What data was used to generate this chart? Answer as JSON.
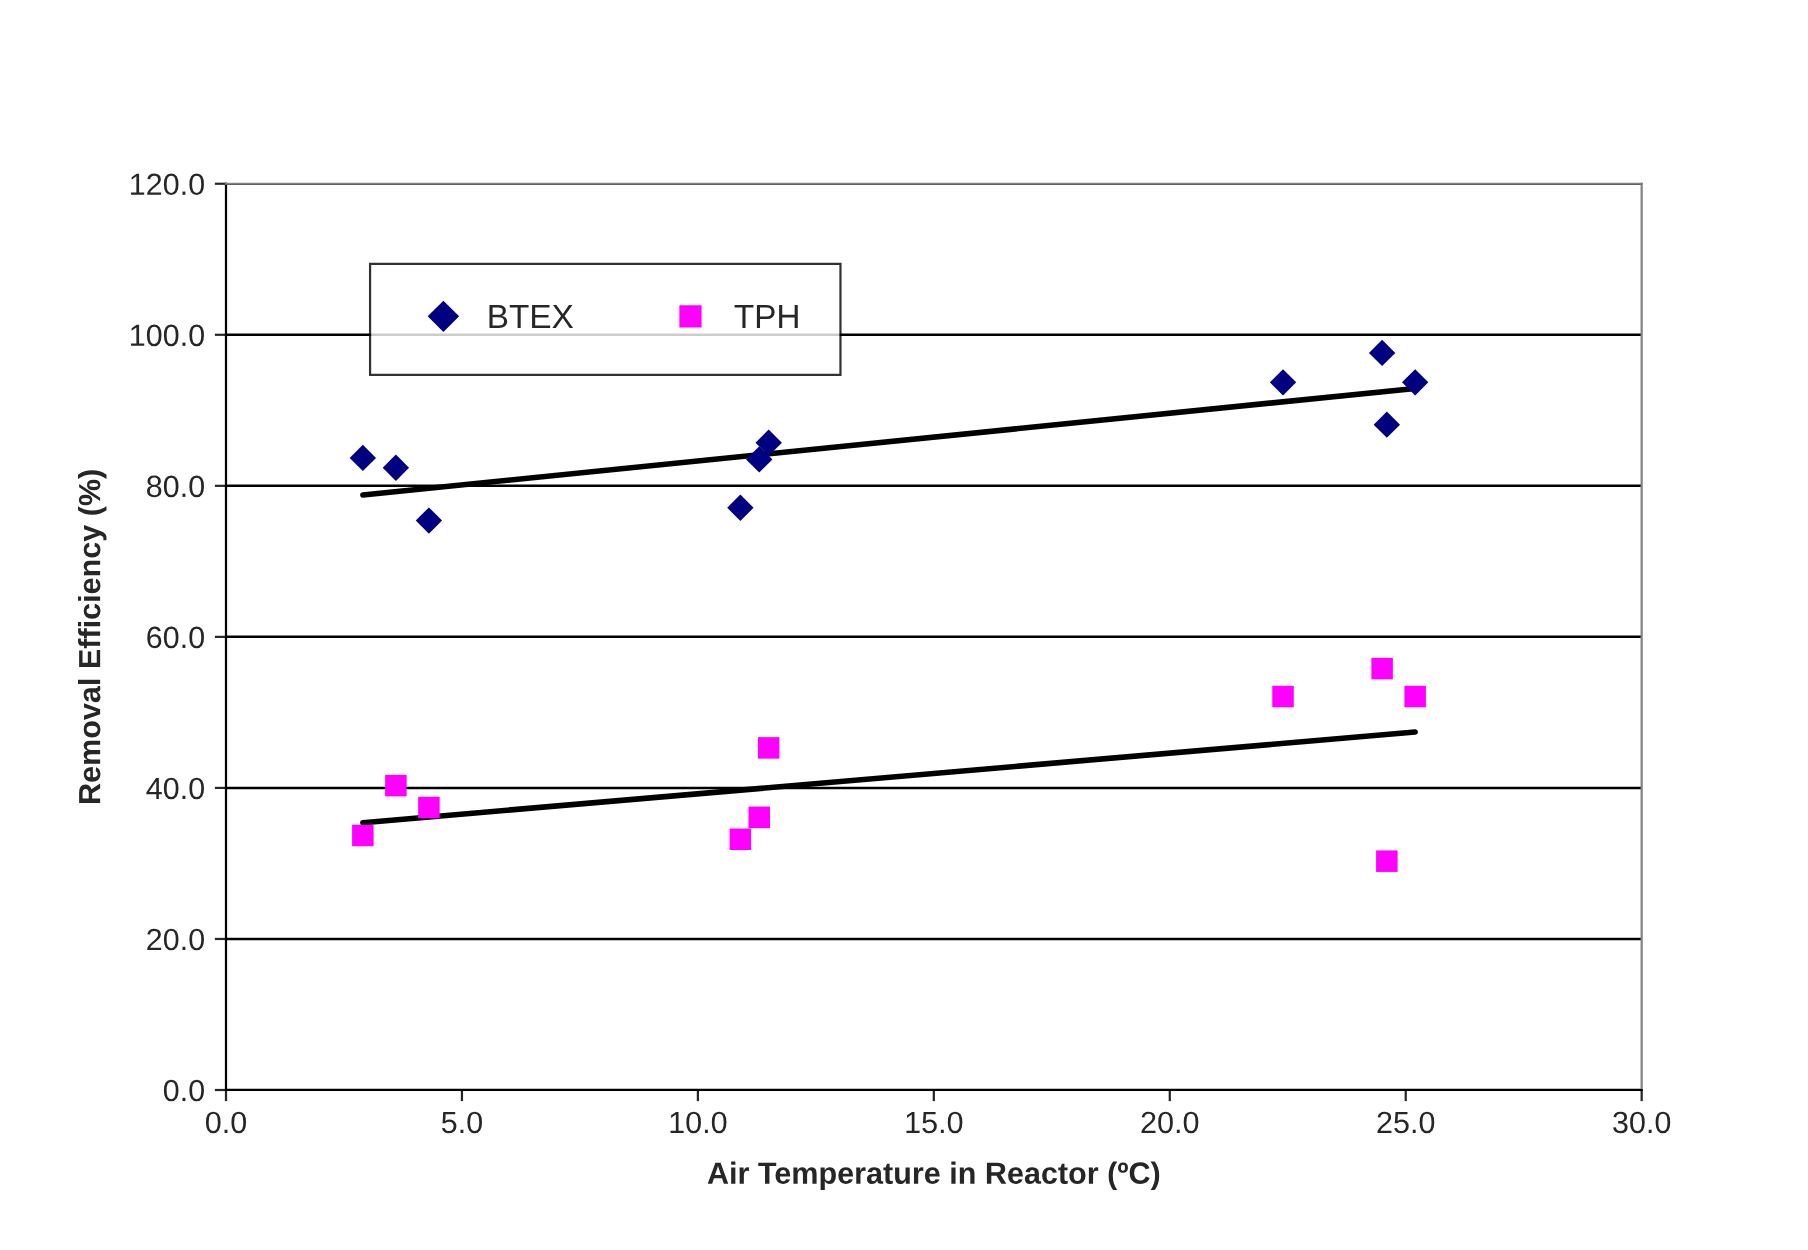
{
  "chart_data": {
    "type": "scatter",
    "xlabel": "Air Temperature in Reactor (ºC)",
    "ylabel": "Removal Efficiency (%)",
    "xlim": [
      0,
      30
    ],
    "xticks": [
      {
        "value": 0,
        "label": "0.0"
      },
      {
        "value": 5,
        "label": "5.0"
      },
      {
        "value": 10,
        "label": "10.0"
      },
      {
        "value": 15,
        "label": "15.0"
      },
      {
        "value": 20,
        "label": "20.0"
      },
      {
        "value": 25,
        "label": "25.0"
      },
      {
        "value": 30,
        "label": "30.0"
      }
    ],
    "ylim": [
      0,
      120
    ],
    "yticks": [
      {
        "value": 0,
        "label": "0.0"
      },
      {
        "value": 20,
        "label": "20.0"
      },
      {
        "value": 40,
        "label": "40.0"
      },
      {
        "value": 60,
        "label": "60.0"
      },
      {
        "value": 80,
        "label": "80.0"
      },
      {
        "value": 100,
        "label": "100.0"
      },
      {
        "value": 120,
        "label": "120.0"
      }
    ],
    "grid": "y",
    "legend": "top left",
    "series": [
      {
        "name": "BTEX",
        "color": "#000080",
        "marker": "diamond",
        "x": [
          2.9,
          3.6,
          4.3,
          10.9,
          11.3,
          11.5,
          22.4,
          24.5,
          24.6,
          25.2
        ],
        "values": [
          83.7,
          82.4,
          75.4,
          77.1,
          83.5,
          85.7,
          93.7,
          97.6,
          88.1,
          93.7
        ]
      },
      {
        "name": "TPH",
        "color": "#ff00ff",
        "marker": "square",
        "x": [
          2.9,
          3.6,
          4.3,
          10.9,
          11.3,
          11.5,
          22.4,
          24.5,
          24.6,
          25.2
        ],
        "values": [
          33.7,
          40.3,
          37.4,
          33.2,
          36.1,
          45.3,
          52.1,
          55.8,
          30.3,
          52.1
        ]
      },
      {
        "type": "line",
        "color": "#000000",
        "marker": "none",
        "line_style": "solid",
        "x": [
          2.9,
          25.2
        ],
        "values": [
          78.8,
          92.9
        ]
      },
      {
        "type": "line",
        "color": "#000000",
        "marker": "none",
        "line_style": "solid",
        "x": [
          2.9,
          25.2
        ],
        "values": [
          35.4,
          47.4
        ]
      }
    ]
  }
}
